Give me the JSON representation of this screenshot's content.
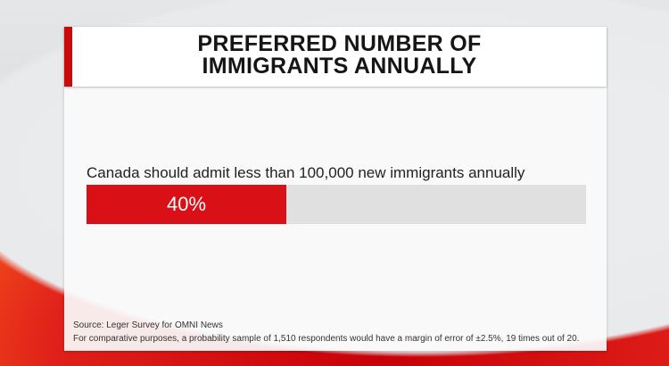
{
  "header": {
    "title_line1": "PREFERRED NUMBER OF",
    "title_line2": "IMMIGRANTS ANNUALLY"
  },
  "chart_data": {
    "type": "bar",
    "title": "PREFERRED NUMBER OF IMMIGRANTS ANNUALLY",
    "categories": [
      "Canada should admit less than 100,000 new immigrants annually"
    ],
    "values": [
      40
    ],
    "value_labels": [
      "40%"
    ],
    "ylim": [
      0,
      100
    ]
  },
  "footer": {
    "source": "Source: Leger Survey for OMNI News",
    "note": "For comparative purposes, a probability sample of 1,510 respondents would have a margin of error of ±2.5%, 19 times out of 20."
  },
  "colors": {
    "accent": "#d91016",
    "track": "#e0e0e0"
  }
}
